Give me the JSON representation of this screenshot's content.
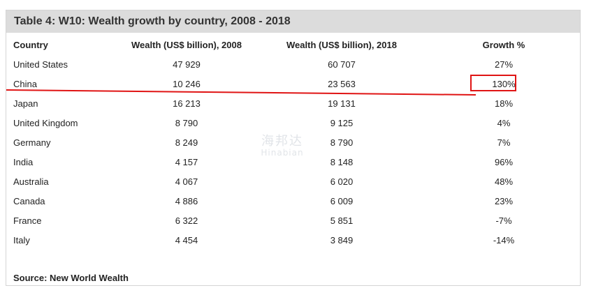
{
  "table": {
    "title": "Table 4: W10: Wealth growth by country, 2008 - 2018",
    "headers": [
      "Country",
      "Wealth (US$ billion), 2008",
      "Wealth (US$ billion), 2018",
      "Growth %"
    ],
    "rows": [
      {
        "country": "United States",
        "w2008": "47 929",
        "w2018": "60 707",
        "growth": "27%"
      },
      {
        "country": "China",
        "w2008": "10 246",
        "w2018": "23 563",
        "growth": "130%"
      },
      {
        "country": "Japan",
        "w2008": "16 213",
        "w2018": "19 131",
        "growth": "18%"
      },
      {
        "country": "United Kingdom",
        "w2008": "8 790",
        "w2018": "9 125",
        "growth": "4%"
      },
      {
        "country": "Germany",
        "w2008": "8 249",
        "w2018": "8 790",
        "growth": "7%"
      },
      {
        "country": "India",
        "w2008": "4 157",
        "w2018": "8 148",
        "growth": "96%"
      },
      {
        "country": "Australia",
        "w2008": "4 067",
        "w2018": "6 020",
        "growth": "48%"
      },
      {
        "country": "Canada",
        "w2008": "4 886",
        "w2018": "6 009",
        "growth": "23%"
      },
      {
        "country": "France",
        "w2008": "6 322",
        "w2018": "5 851",
        "growth": "-7%"
      },
      {
        "country": "Italy",
        "w2008": "4 454",
        "w2018": "3 849",
        "growth": "-14%"
      }
    ],
    "source": "Source: New World Wealth"
  },
  "annotations": {
    "highlight_color": "#e01414",
    "highlighted_row": "China",
    "highlighted_cell": "130%"
  },
  "watermark": {
    "cn": "海邦达",
    "en": "Hinabian"
  }
}
